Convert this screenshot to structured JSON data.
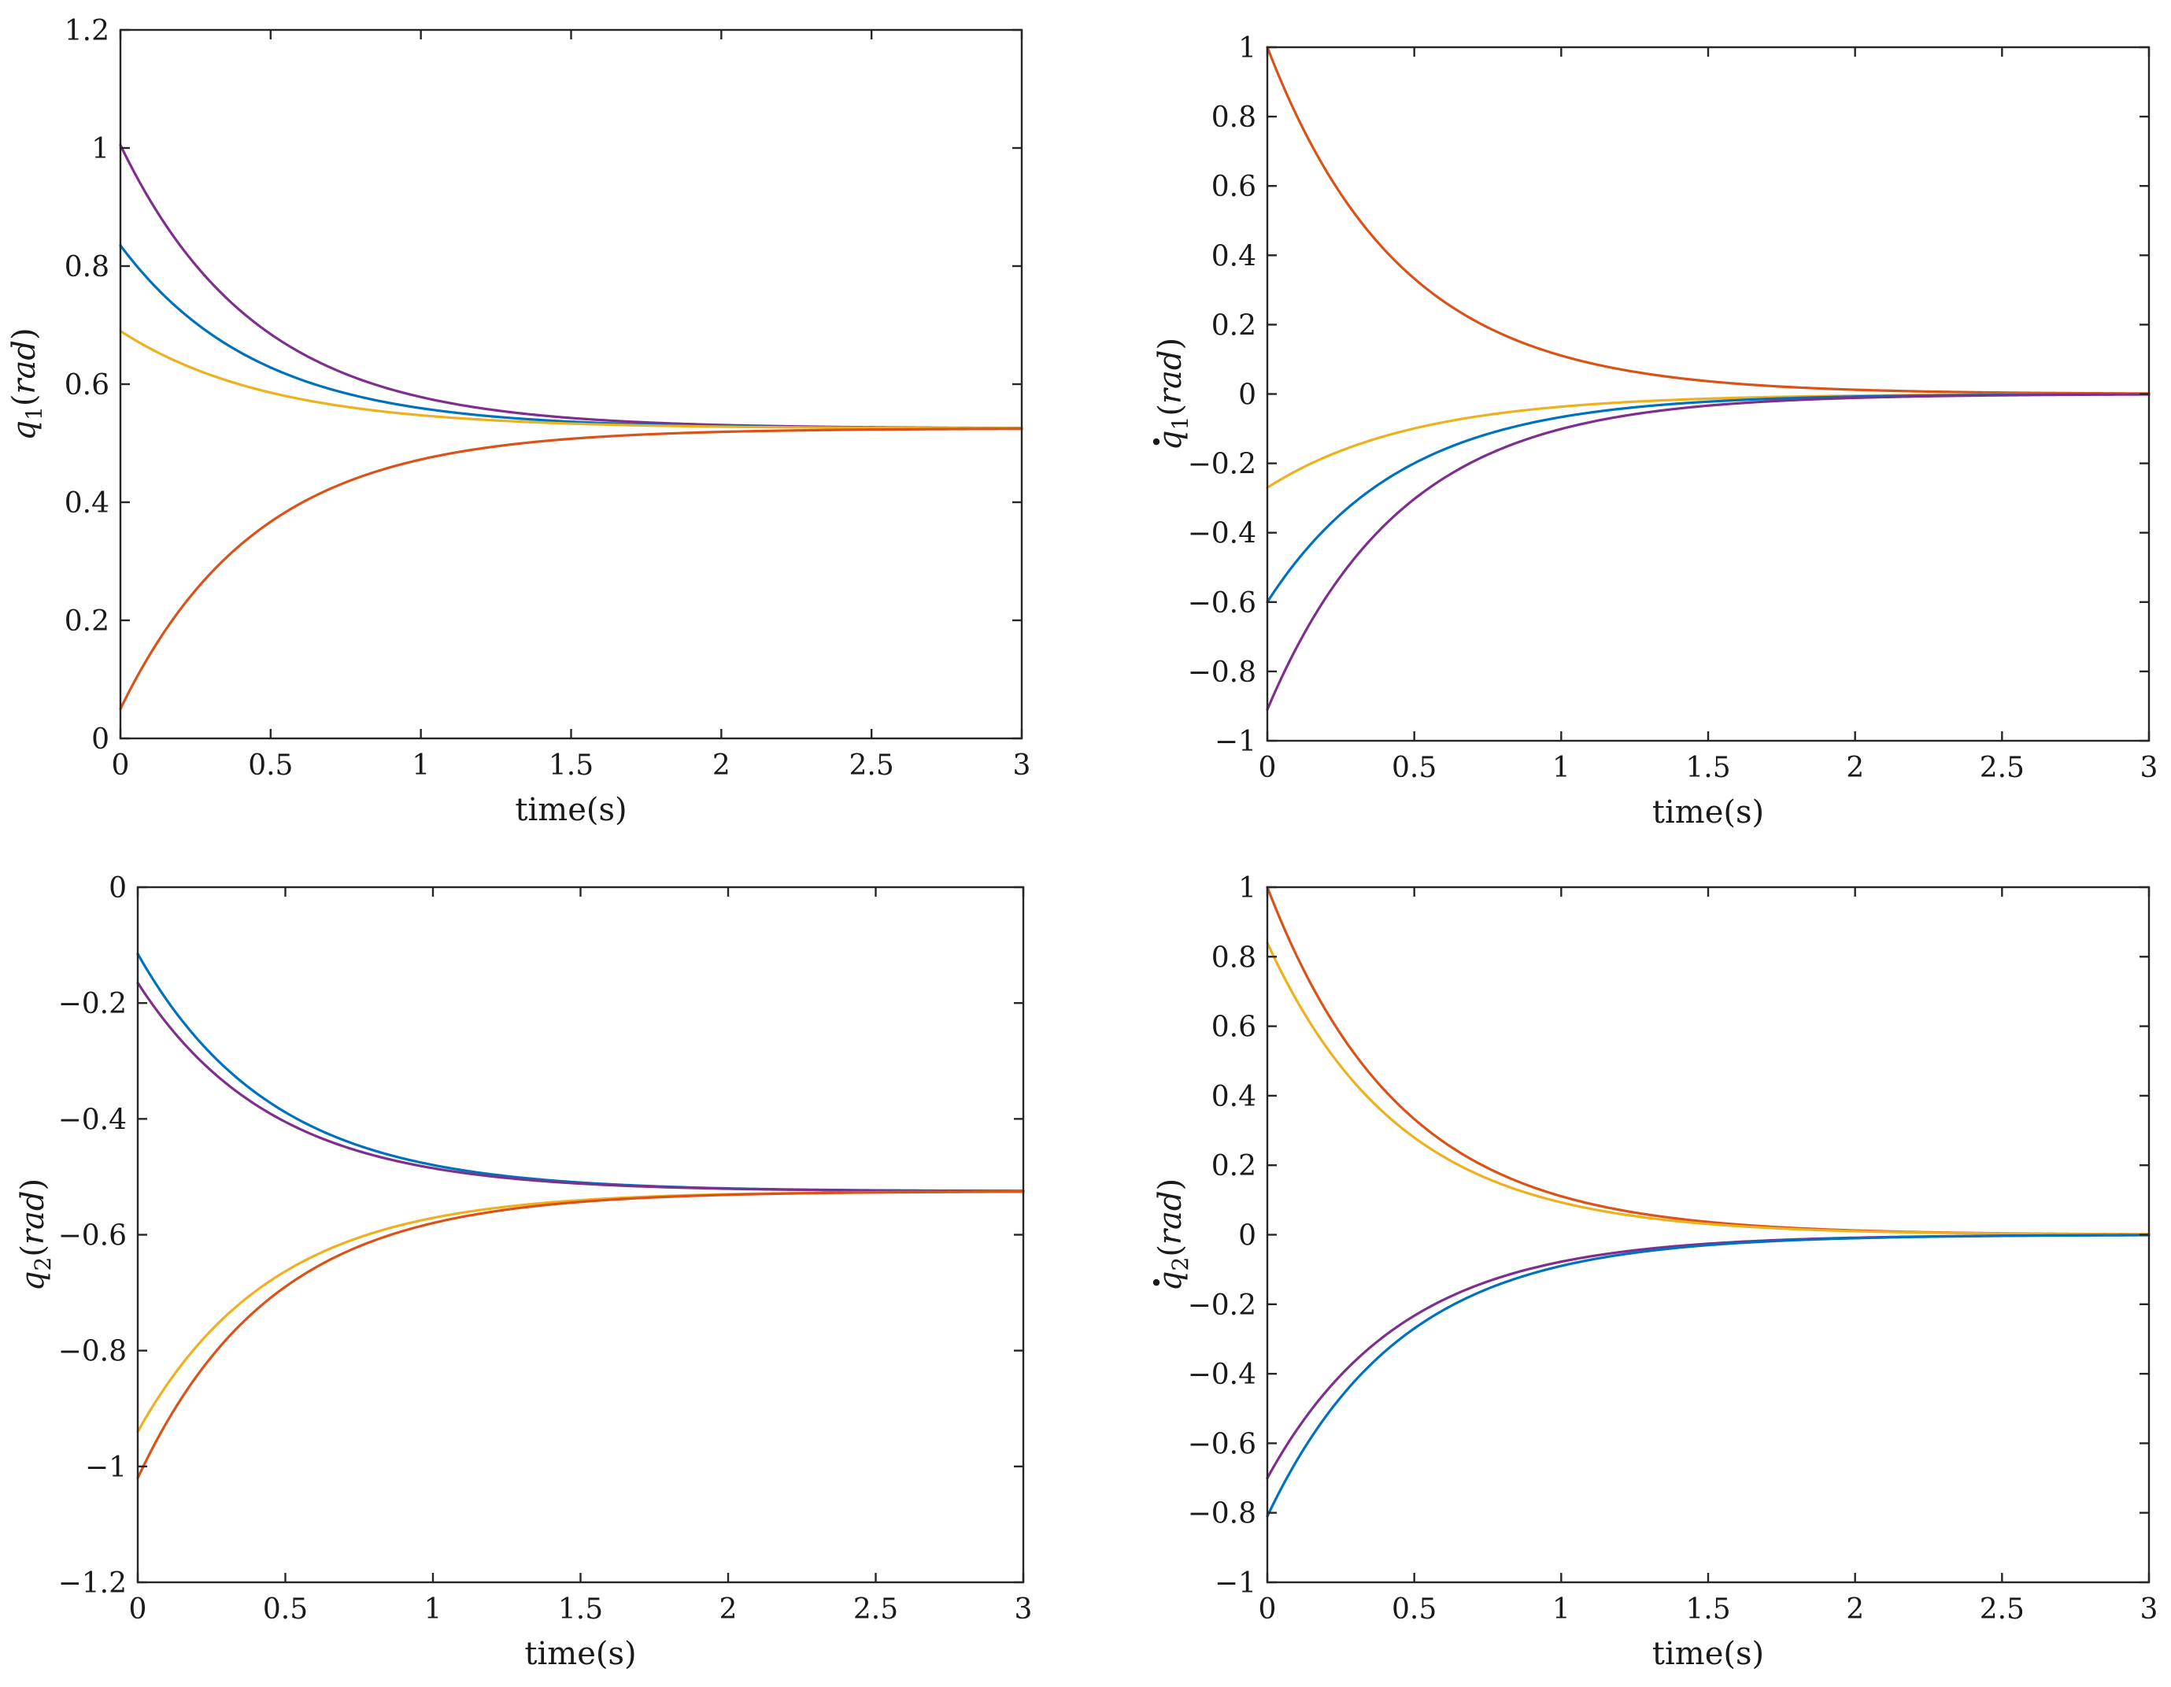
{
  "chart_data": [
    {
      "id": "q1",
      "type": "line",
      "xlabel": "time(s)",
      "ylabel": {
        "base": "q",
        "sub": "1",
        "unit": "rad",
        "dot": false
      },
      "xlim": [
        0,
        3
      ],
      "ylim": [
        0,
        1.2
      ],
      "xticks": [
        0,
        0.5,
        1,
        1.5,
        2,
        2.5,
        3
      ],
      "xtick_labels": [
        "0",
        "0.5",
        "1",
        "1.5",
        "2",
        "2.5",
        "3"
      ],
      "yticks": [
        0,
        0.2,
        0.4,
        0.6,
        0.8,
        1,
        1.2
      ],
      "ytick_labels": [
        "0",
        "0.2",
        "0.4",
        "0.6",
        "0.8",
        "1",
        "1.2"
      ],
      "series": [
        {
          "name": "purple",
          "color": "#7E2F8E",
          "initial": 1.005,
          "final": 0.525,
          "rate": 2.2
        },
        {
          "name": "blue",
          "color": "#0072BD",
          "initial": 0.835,
          "final": 0.525,
          "rate": 2.2
        },
        {
          "name": "yellow",
          "color": "#EDB120",
          "initial": 0.69,
          "final": 0.525,
          "rate": 2.0
        },
        {
          "name": "orange",
          "color": "#D95319",
          "initial": 0.05,
          "final": 0.525,
          "rate": 2.2
        }
      ]
    },
    {
      "id": "qd1",
      "type": "line",
      "xlabel": "time(s)",
      "ylabel": {
        "base": "q",
        "sub": "1",
        "unit": "rad",
        "dot": true
      },
      "xlim": [
        0,
        3
      ],
      "ylim": [
        -1,
        1
      ],
      "xticks": [
        0,
        0.5,
        1,
        1.5,
        2,
        2.5,
        3
      ],
      "xtick_labels": [
        "0",
        "0.5",
        "1",
        "1.5",
        "2",
        "2.5",
        "3"
      ],
      "yticks": [
        -1,
        -0.8,
        -0.6,
        -0.4,
        -0.2,
        0,
        0.2,
        0.4,
        0.6,
        0.8,
        1
      ],
      "ytick_labels": [
        "−1",
        "−0.8",
        "−0.6",
        "−0.4",
        "−0.2",
        "0",
        "0.2",
        "0.4",
        "0.6",
        "0.8",
        "1"
      ],
      "series": [
        {
          "name": "orange",
          "color": "#D95319",
          "initial": 1.0,
          "final": 0,
          "rate": 2.2
        },
        {
          "name": "yellow",
          "color": "#EDB120",
          "initial": -0.27,
          "final": 0,
          "rate": 2.0
        },
        {
          "name": "blue",
          "color": "#0072BD",
          "initial": -0.6,
          "final": 0,
          "rate": 2.2
        },
        {
          "name": "purple",
          "color": "#7E2F8E",
          "initial": -0.91,
          "final": 0,
          "rate": 2.2
        }
      ]
    },
    {
      "id": "q2",
      "type": "line",
      "xlabel": "time(s)",
      "ylabel": {
        "base": "q",
        "sub": "2",
        "unit": "rad",
        "dot": false
      },
      "xlim": [
        0,
        3
      ],
      "ylim": [
        -1.2,
        0
      ],
      "xticks": [
        0,
        0.5,
        1,
        1.5,
        2,
        2.5,
        3
      ],
      "xtick_labels": [
        "0",
        "0.5",
        "1",
        "1.5",
        "2",
        "2.5",
        "3"
      ],
      "yticks": [
        -1.2,
        -1,
        -0.8,
        -0.6,
        -0.4,
        -0.2,
        0
      ],
      "ytick_labels": [
        "−1.2",
        "−1",
        "−0.8",
        "−0.6",
        "−0.4",
        "−0.2",
        "0"
      ],
      "series": [
        {
          "name": "blue",
          "color": "#0072BD",
          "initial": -0.115,
          "final": -0.525,
          "rate": 2.2
        },
        {
          "name": "purple",
          "color": "#7E2F8E",
          "initial": -0.165,
          "final": -0.525,
          "rate": 2.2
        },
        {
          "name": "yellow",
          "color": "#EDB120",
          "initial": -0.94,
          "final": -0.525,
          "rate": 2.2
        },
        {
          "name": "orange",
          "color": "#D95319",
          "initial": -1.02,
          "final": -0.525,
          "rate": 2.2
        }
      ]
    },
    {
      "id": "qd2",
      "type": "line",
      "xlabel": "time(s)",
      "ylabel": {
        "base": "q",
        "sub": "2",
        "unit": "rad",
        "dot": true
      },
      "xlim": [
        0,
        3
      ],
      "ylim": [
        -1,
        1
      ],
      "xticks": [
        0,
        0.5,
        1,
        1.5,
        2,
        2.5,
        3
      ],
      "xtick_labels": [
        "0",
        "0.5",
        "1",
        "1.5",
        "2",
        "2.5",
        "3"
      ],
      "yticks": [
        -1,
        -0.8,
        -0.6,
        -0.4,
        -0.2,
        0,
        0.2,
        0.4,
        0.6,
        0.8,
        1
      ],
      "ytick_labels": [
        "−1",
        "−0.8",
        "−0.6",
        "−0.4",
        "−0.2",
        "0",
        "0.2",
        "0.4",
        "0.6",
        "0.8",
        "1"
      ],
      "series": [
        {
          "name": "orange",
          "color": "#D95319",
          "initial": 1.0,
          "final": 0,
          "rate": 2.2
        },
        {
          "name": "yellow",
          "color": "#EDB120",
          "initial": 0.84,
          "final": 0,
          "rate": 2.2
        },
        {
          "name": "purple",
          "color": "#7E2F8E",
          "initial": -0.7,
          "final": 0,
          "rate": 2.2
        },
        {
          "name": "blue",
          "color": "#0072BD",
          "initial": -0.81,
          "final": 0,
          "rate": 2.2
        }
      ]
    }
  ]
}
